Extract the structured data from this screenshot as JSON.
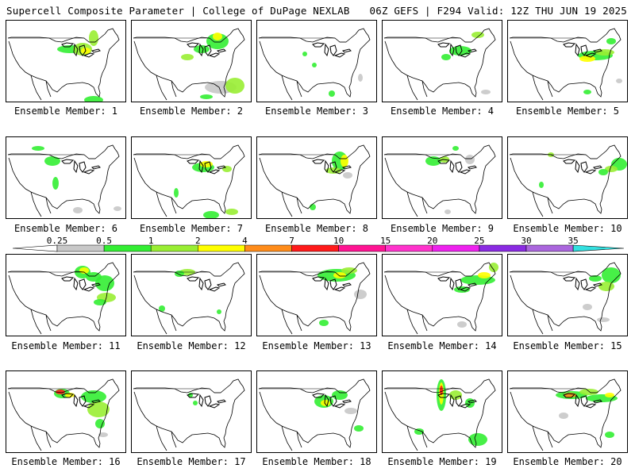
{
  "header": {
    "title_left": "Supercell Composite Parameter | College of DuPage NEXLAB",
    "title_right": "06Z GEFS | F294 Valid: 12Z THU JUN 19 2025"
  },
  "member_label_prefix": "Ensemble Member: ",
  "members": [
    "1",
    "2",
    "3",
    "4",
    "5",
    "6",
    "7",
    "8",
    "9",
    "10",
    "11",
    "12",
    "13",
    "14",
    "15",
    "16",
    "17",
    "18",
    "19",
    "20"
  ],
  "colorbar": {
    "labels": [
      "0.25",
      "0.5",
      "1",
      "2",
      "4",
      "7",
      "10",
      "15",
      "20",
      "25",
      "30",
      "35"
    ],
    "colors": [
      "#c8c8c8",
      "#33ee33",
      "#99ee33",
      "#ffff00",
      "#ff8c1a",
      "#ff1a1a",
      "#ff1493",
      "#ff33cc",
      "#ee22ee",
      "#8a2be2",
      "#aa66dd",
      "#33e0e0"
    ]
  }
}
